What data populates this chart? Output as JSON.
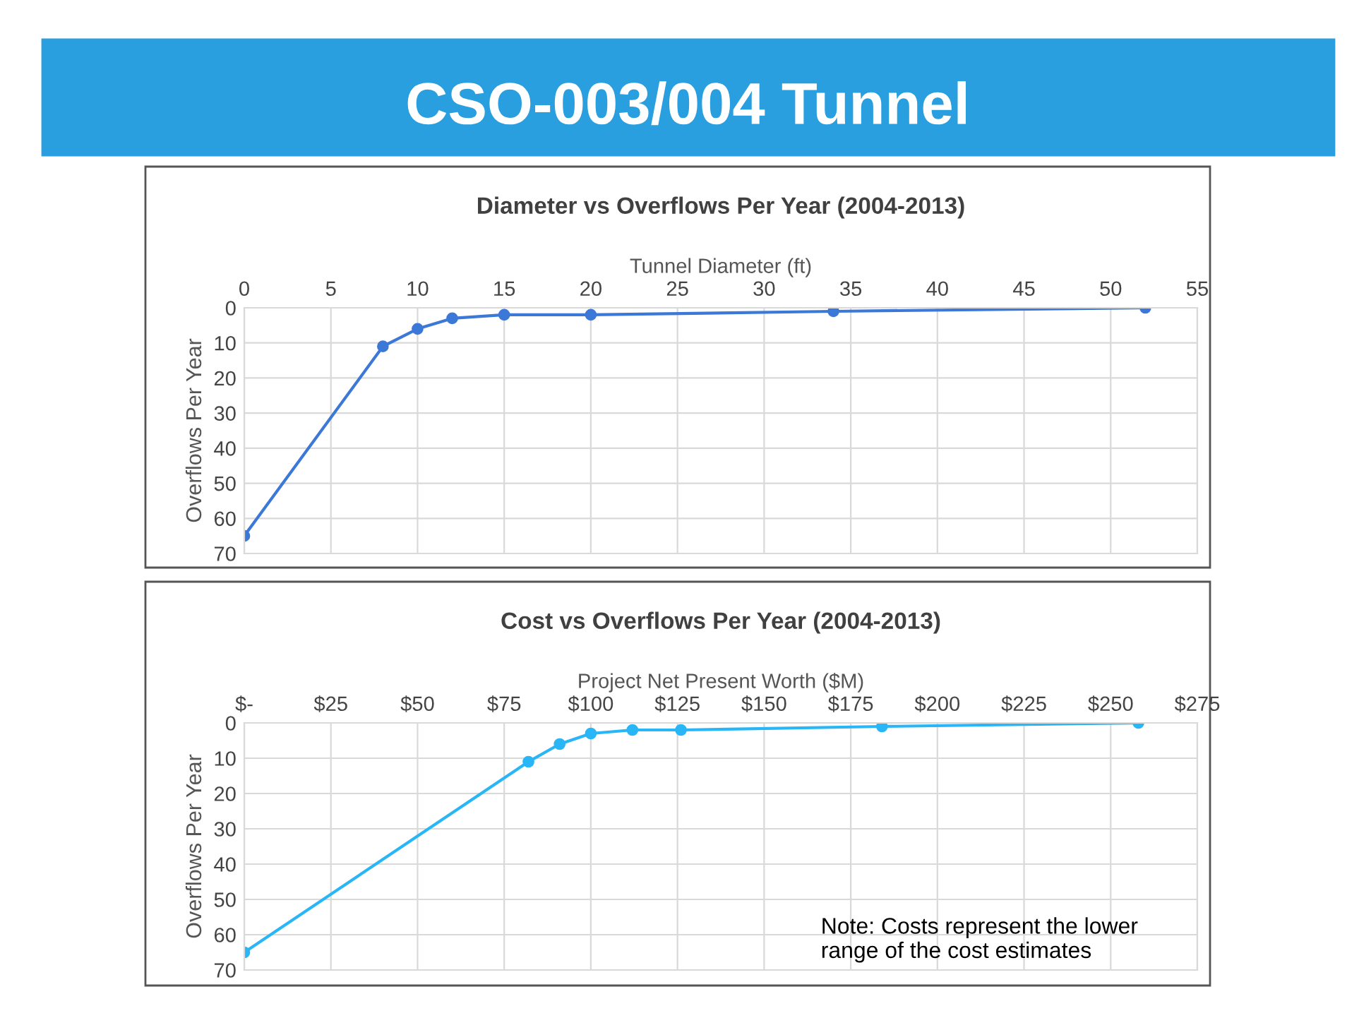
{
  "chart_data": [
    {
      "type": "line",
      "title": "Diameter vs Overflows Per Year (2004-2013)",
      "xlabel": "Tunnel Diameter (ft)",
      "ylabel": "Overflows Per Year",
      "annotations": [
        "CSO-003/004 Tunnel"
      ],
      "x": [
        0,
        8,
        10,
        12,
        15,
        20,
        34,
        52
      ],
      "series": [
        {
          "color": "#3c78d8",
          "values": [
            65,
            11,
            6,
            3,
            2,
            2,
            1,
            0
          ]
        }
      ],
      "xlim": [
        0,
        55
      ],
      "xticks": [
        0,
        5,
        10,
        15,
        20,
        25,
        30,
        35,
        40,
        45,
        50,
        55
      ],
      "ylim": [
        70,
        0
      ],
      "yticks": [
        0,
        10,
        20,
        30,
        40,
        50,
        60,
        70
      ],
      "grid": true,
      "marker": "circle",
      "line_style": "solid"
    },
    {
      "type": "line",
      "title": "Cost vs Overflows Per Year (2004-2013)",
      "xlabel": "Project Net Present Worth ($M)",
      "ylabel": "Overflows Per Year",
      "annotations": [
        "Note: Costs represent the lower\nrange of the cost estimates"
      ],
      "x": [
        0,
        82,
        91,
        100,
        112,
        126,
        184,
        258
      ],
      "series": [
        {
          "color": "#29b6f6",
          "values": [
            65,
            11,
            6,
            3,
            2,
            2,
            1,
            0
          ]
        }
      ],
      "xlim": [
        0,
        275
      ],
      "xticks": [
        {
          "value": 0,
          "label": "$-"
        },
        {
          "value": 25,
          "label": "$25"
        },
        {
          "value": 50,
          "label": "$50"
        },
        {
          "value": 75,
          "label": "$75"
        },
        {
          "value": 100,
          "label": "$100"
        },
        {
          "value": 125,
          "label": "$125"
        },
        {
          "value": 150,
          "label": "$150"
        },
        {
          "value": 175,
          "label": "$175"
        },
        {
          "value": 200,
          "label": "$200"
        },
        {
          "value": 225,
          "label": "$225"
        },
        {
          "value": 250,
          "label": "$250"
        },
        {
          "value": 275,
          "label": "$275"
        }
      ],
      "ylim": [
        70,
        0
      ],
      "yticks": [
        0,
        10,
        20,
        30,
        40,
        50,
        60,
        70
      ],
      "grid": true,
      "marker": "circle",
      "line_style": "solid"
    }
  ]
}
